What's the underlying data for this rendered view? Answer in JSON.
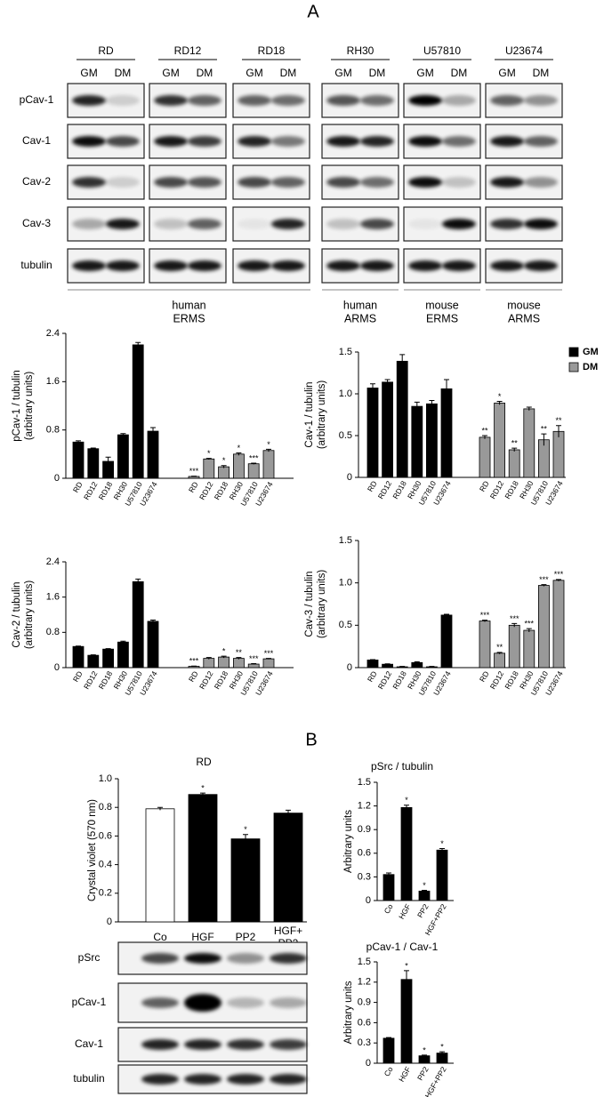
{
  "panel_labels": [
    "A",
    "B"
  ],
  "blots_a": {
    "cell_lines": [
      "RD",
      "RD12",
      "RD18",
      "RH30",
      "U57810",
      "U23674"
    ],
    "conditions": [
      "GM",
      "DM"
    ],
    "rows": [
      "pCav-1",
      "Cav-1",
      "Cav-2",
      "Cav-3",
      "tubulin"
    ],
    "groups": [
      "human\nERMS",
      "human\nARMS",
      "mouse\nERMS",
      "mouse\nARMS"
    ]
  },
  "blots_b": {
    "rows": [
      "pSrc",
      "pCav-1",
      "Cav-1",
      "tubulin"
    ]
  },
  "chart_data": [
    {
      "type": "bar",
      "y_label": "pCav-1 / tubulin\n(arbitrary units)",
      "categories": [
        "RD",
        "RD12",
        "RD18",
        "RH30",
        "U57810",
        "U23674"
      ],
      "ylim": [
        0,
        2.4
      ],
      "yticks": [
        0,
        0.8,
        1.6,
        2.4
      ],
      "series": [
        {
          "color": "#000000",
          "values": [
            0.6,
            0.49,
            0.28,
            0.72,
            2.21,
            0.78
          ],
          "errors": [
            0.02,
            0.01,
            0.07,
            0.02,
            0.04,
            0.06
          ]
        },
        {
          "color": "#999999",
          "values": [
            0.03,
            0.32,
            0.19,
            0.4,
            0.24,
            0.46
          ],
          "errors": [
            0.005,
            0.01,
            0.02,
            0.02,
            0.01,
            0.02
          ],
          "significance": [
            "***",
            "*",
            "*",
            "*",
            "***",
            "*"
          ]
        }
      ]
    },
    {
      "type": "bar",
      "y_label": "Cav-1 / tubulin\n(arbitrary units)",
      "legend": "upper right",
      "categories": [
        "RD",
        "RD12",
        "RD18",
        "RH30",
        "U57810",
        "U23674"
      ],
      "ylim": [
        0,
        1.5
      ],
      "yticks": [
        0,
        0.5,
        {
          "value": 1,
          "label": "1.0"
        },
        1.5
      ],
      "series": [
        {
          "name": "GM",
          "color": "#000000",
          "values": [
            1.07,
            1.14,
            1.39,
            0.85,
            0.88,
            1.06
          ],
          "errors": [
            0.05,
            0.03,
            0.08,
            0.05,
            0.04,
            0.11
          ]
        },
        {
          "name": "DM",
          "color": "#999999",
          "values": [
            0.48,
            0.89,
            0.33,
            0.82,
            0.45,
            0.55
          ],
          "errors": [
            0.02,
            0.02,
            0.02,
            0.02,
            0.07,
            0.07
          ],
          "significance": [
            "**",
            "*",
            "**",
            null,
            "**",
            "**"
          ]
        }
      ]
    },
    {
      "type": "bar",
      "y_label": "Cav-2 / tubulin\n(arbitrary units)",
      "categories": [
        "RD",
        "RD12",
        "RD18",
        "RH30",
        "U57810",
        "U23674"
      ],
      "ylim": [
        0,
        2.4
      ],
      "yticks": [
        0,
        0.8,
        1.6,
        2.4
      ],
      "series": [
        {
          "color": "#000000",
          "values": [
            0.48,
            0.28,
            0.42,
            0.58,
            1.95,
            1.05
          ],
          "errors": [
            0.01,
            0.01,
            0.01,
            0.02,
            0.06,
            0.03
          ]
        },
        {
          "color": "#999999",
          "values": [
            0.03,
            0.21,
            0.24,
            0.21,
            0.08,
            0.2
          ],
          "errors": [
            0.005,
            0.02,
            0.02,
            0.02,
            0.01,
            0.01
          ],
          "significance": [
            "***",
            null,
            "*",
            "**",
            "***",
            "***"
          ]
        }
      ]
    },
    {
      "type": "bar",
      "y_label": "Cav-3 / tubulin\n(arbitrary units)",
      "categories": [
        "RD",
        "RD12",
        "RD18",
        "RH30",
        "U57810",
        "U23674"
      ],
      "ylim": [
        0,
        1.5
      ],
      "yticks": [
        0,
        0.5,
        {
          "value": 1,
          "label": "1.0"
        },
        1.5
      ],
      "series": [
        {
          "color": "#000000",
          "values": [
            0.09,
            0.04,
            0.01,
            0.06,
            0.01,
            0.62
          ],
          "errors": [
            0.005,
            0.005,
            0.005,
            0.01,
            0.005,
            0.01
          ]
        },
        {
          "color": "#999999",
          "values": [
            0.55,
            0.17,
            0.5,
            0.44,
            0.97,
            1.03
          ],
          "errors": [
            0.01,
            0.01,
            0.02,
            0.02,
            0.01,
            0.01
          ],
          "significance": [
            "***",
            "**",
            "***",
            "***",
            "***",
            "***"
          ]
        }
      ]
    },
    {
      "type": "bar",
      "title": "RD",
      "y_label": "Crystal violet (570 nm)",
      "categories": [
        "Co",
        "HGF",
        "PP2",
        "HGF+\nPP2"
      ],
      "ylim": [
        0,
        1
      ],
      "yticks": [
        0,
        0.2,
        0.4,
        0.6,
        0.8,
        {
          "value": 1,
          "label": "1.0"
        }
      ],
      "colors": [
        "#ffffff",
        "#000000",
        "#000000",
        "#000000"
      ],
      "values": [
        0.79,
        0.89,
        0.58,
        0.76
      ],
      "errors": [
        0.01,
        0.01,
        0.03,
        0.02
      ],
      "significance": [
        null,
        "*",
        "*",
        null
      ]
    },
    {
      "type": "bar",
      "title": "pSrc / tubulin",
      "y_label": "Arbitrary units",
      "categories": [
        "Co",
        "HGF",
        "PP2",
        "HGF+PP2"
      ],
      "ylim": [
        0,
        1.5
      ],
      "yticks": [
        0,
        0.3,
        0.6,
        0.9,
        1.2,
        1.5
      ],
      "color": "#000000",
      "values": [
        0.33,
        1.18,
        0.12,
        0.64
      ],
      "errors": [
        0.02,
        0.03,
        0.01,
        0.02
      ],
      "significance": [
        null,
        "*",
        "*",
        "*"
      ]
    },
    {
      "type": "bar",
      "title": "pCav-1 / Cav-1",
      "y_label": "Arbitrary units",
      "categories": [
        "Co",
        "HGF",
        "PP2",
        "HGF+PP2"
      ],
      "ylim": [
        0,
        1.5
      ],
      "yticks": [
        0,
        0.3,
        0.6,
        0.9,
        1.2,
        1.5
      ],
      "color": "#000000",
      "values": [
        0.37,
        1.24,
        0.11,
        0.15
      ],
      "errors": [
        0.01,
        0.13,
        0.01,
        0.02
      ],
      "significance": [
        null,
        "*",
        "*",
        "*"
      ]
    }
  ]
}
